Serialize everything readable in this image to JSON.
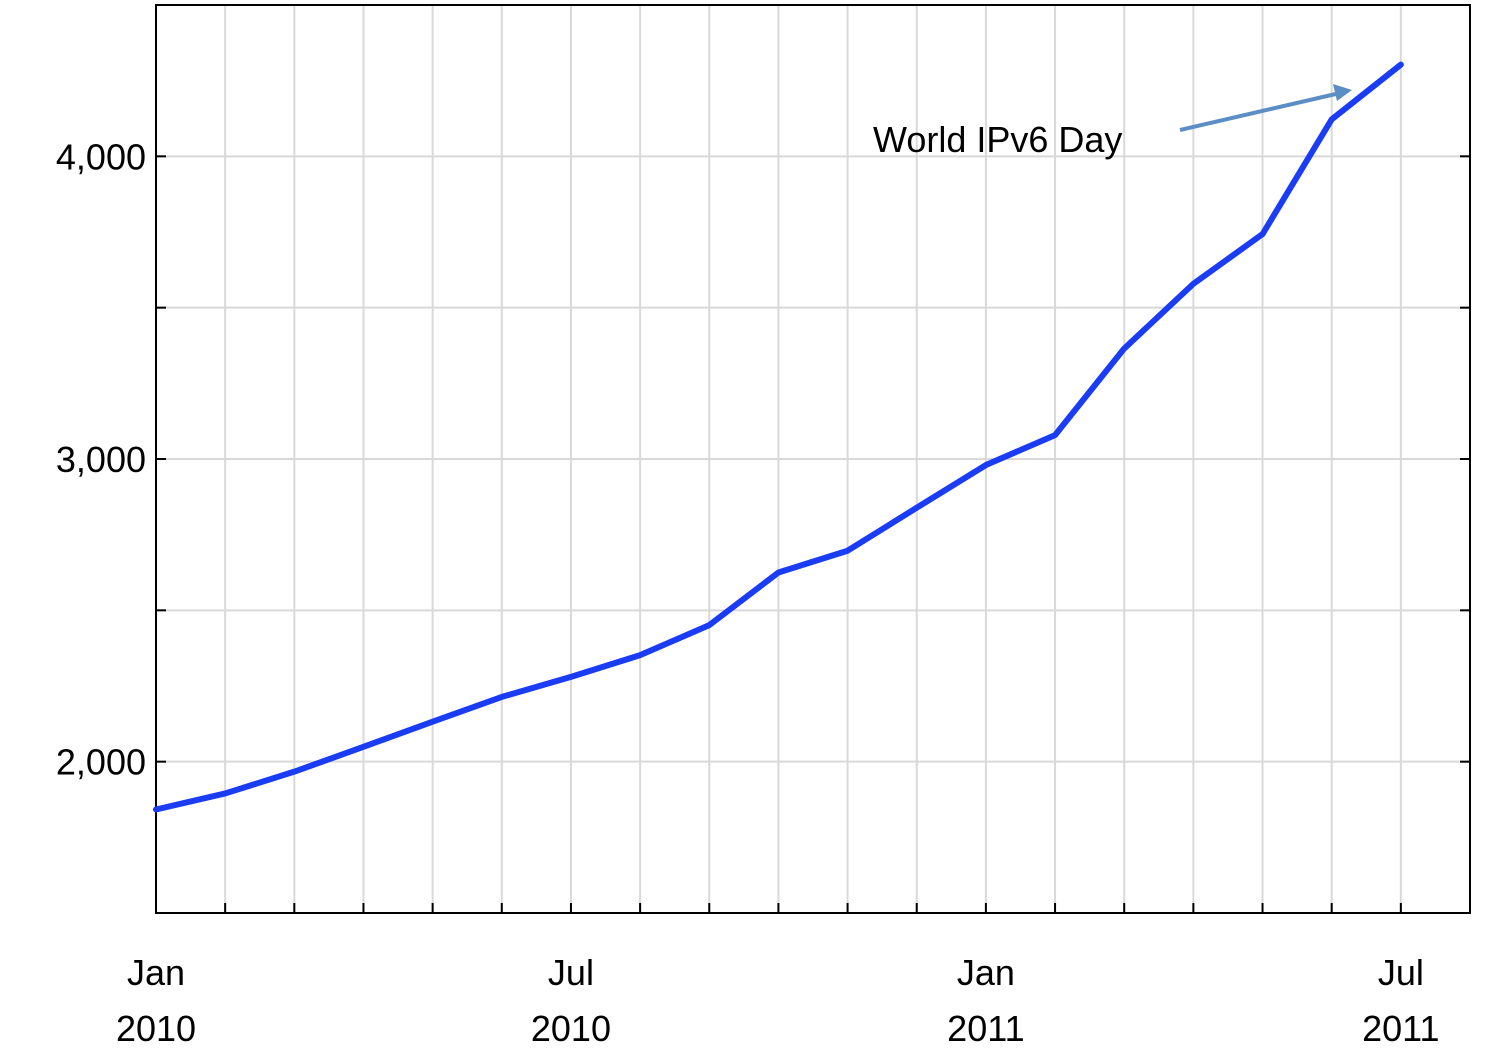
{
  "chart_data": {
    "type": "line",
    "x": [
      "2010-01",
      "2010-02",
      "2010-03",
      "2010-04",
      "2010-05",
      "2010-06",
      "2010-07",
      "2010-08",
      "2010-09",
      "2010-10",
      "2010-11",
      "2010-12",
      "2011-01",
      "2011-02",
      "2011-03",
      "2011-04",
      "2011-05",
      "2011-06",
      "2011-07"
    ],
    "values": [
      1842,
      1895,
      1967,
      2049,
      2132,
      2214,
      2280,
      2352,
      2451,
      2625,
      2697,
      2839,
      2980,
      3079,
      3365,
      3579,
      3743,
      4122,
      4303
    ],
    "color": "#1a3cf5",
    "xlim": [
      "2010-01",
      "2011-08"
    ],
    "xticks": [
      {
        "value": "2010-01",
        "label": "Jan 2010"
      },
      {
        "value": "2010-07",
        "label": "Jul 2010"
      },
      {
        "value": "2011-01",
        "label": "Jan 2011"
      },
      {
        "value": "2011-07",
        "label": "Jul 2011"
      }
    ],
    "xminor": [
      "2010-02",
      "2010-03",
      "2010-04",
      "2010-05",
      "2010-06",
      "2010-08",
      "2010-09",
      "2010-10",
      "2010-11",
      "2010-12",
      "2011-02",
      "2011-03",
      "2011-04",
      "2011-05",
      "2011-06"
    ],
    "ylim": [
      1500,
      4500
    ],
    "yticks": [
      {
        "value": 2000,
        "label": "2,000"
      },
      {
        "value": 3000,
        "label": "3,000"
      },
      {
        "value": 4000,
        "label": "4,000"
      }
    ],
    "yminor": [
      2500,
      3500
    ],
    "grid": true,
    "annotation": "World IPv6 Day"
  }
}
